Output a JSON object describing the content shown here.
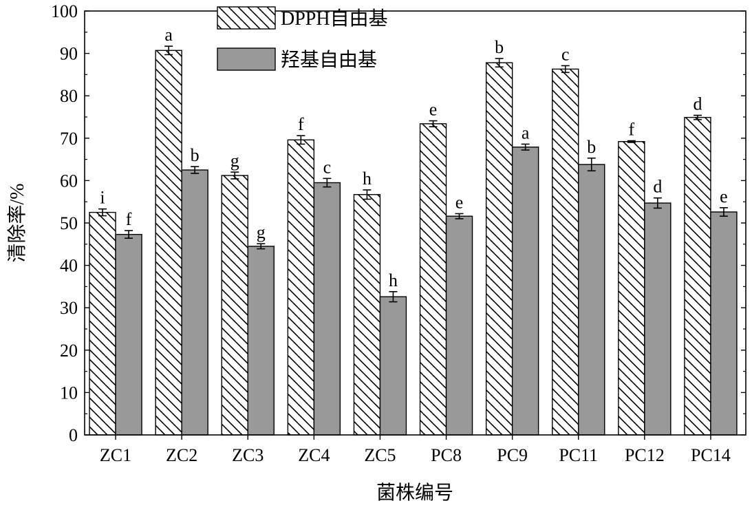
{
  "chart_data": {
    "type": "bar",
    "title": "",
    "xlabel": "菌株编号",
    "ylabel": "清除率/%",
    "ylim": [
      0,
      100
    ],
    "yticks": [
      0,
      10,
      20,
      30,
      40,
      50,
      60,
      70,
      80,
      90,
      100
    ],
    "categories": [
      "ZC1",
      "ZC2",
      "ZC3",
      "ZC4",
      "ZC5",
      "PC8",
      "PC9",
      "PC11",
      "PC12",
      "PC14"
    ],
    "legend_position": "top-left",
    "grid": false,
    "series": [
      {
        "name": "DPPH自由基",
        "pattern": "diagonal-hatch",
        "color": "#ffffff",
        "values": [
          52.5,
          90.7,
          61.2,
          69.6,
          56.7,
          73.4,
          87.8,
          86.3,
          69.2,
          74.9
        ],
        "errors": [
          0.8,
          1.0,
          0.8,
          1.0,
          1.1,
          0.7,
          1.0,
          0.8,
          0.2,
          0.5
        ],
        "significance": [
          "i",
          "a",
          "g",
          "f",
          "h",
          "e",
          "b",
          "c",
          "f",
          "d"
        ]
      },
      {
        "name": "羟基自由基",
        "pattern": "solid",
        "color": "#999999",
        "values": [
          47.3,
          62.5,
          44.5,
          59.5,
          32.6,
          51.6,
          67.9,
          63.8,
          54.7,
          52.6
        ],
        "errors": [
          0.9,
          0.8,
          0.6,
          1.0,
          1.2,
          0.6,
          0.7,
          1.5,
          1.2,
          1.0
        ],
        "significance": [
          "f",
          "b",
          "g",
          "c",
          "h",
          "e",
          "a",
          "b",
          "d",
          "e"
        ]
      }
    ]
  }
}
